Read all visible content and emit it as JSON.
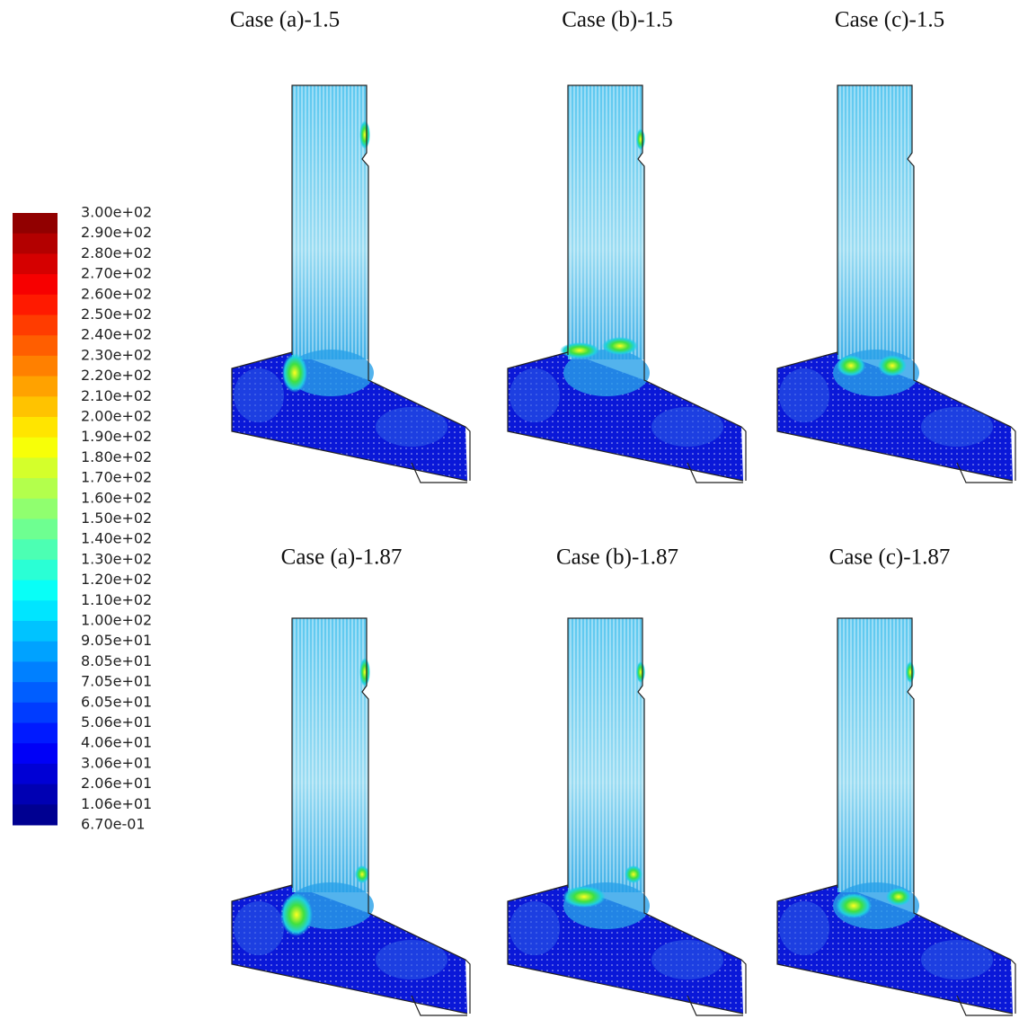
{
  "panels": [
    {
      "title": "Case (a)-1.5"
    },
    {
      "title": "Case (b)-1.5"
    },
    {
      "title": "Case (c)-1.5"
    },
    {
      "title": "Case (a)-1.87"
    },
    {
      "title": "Case (b)-1.87"
    },
    {
      "title": "Case (c)-1.87"
    }
  ],
  "colorbar": {
    "labels": [
      "3.00e+02",
      "2.90e+02",
      "2.80e+02",
      "2.70e+02",
      "2.60e+02",
      "2.50e+02",
      "2.40e+02",
      "2.30e+02",
      "2.20e+02",
      "2.10e+02",
      "2.00e+02",
      "1.90e+02",
      "1.80e+02",
      "1.70e+02",
      "1.60e+02",
      "1.50e+02",
      "1.40e+02",
      "1.30e+02",
      "1.20e+02",
      "1.10e+02",
      "1.00e+02",
      "9.05e+01",
      "8.05e+01",
      "7.05e+01",
      "6.05e+01",
      "5.06e+01",
      "4.06e+01",
      "3.06e+01",
      "2.06e+01",
      "1.06e+01",
      "6.70e-01"
    ]
  }
}
